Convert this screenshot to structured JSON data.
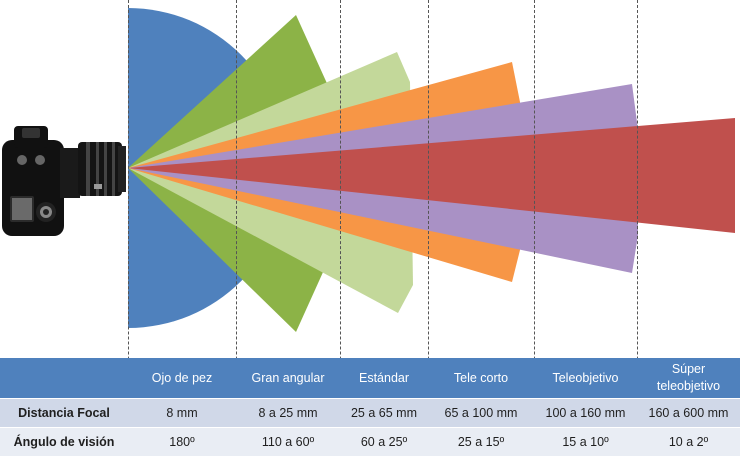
{
  "colors": {
    "fisheye": "#4f81bd",
    "wide": "#8cb347",
    "standard": "#c3d89a",
    "short_tele": "#f79646",
    "telephoto": "#a991c5",
    "super_tele": "#c0504d",
    "table_header": "#4f81bd",
    "row_focal": "#d0d8e8",
    "row_angle": "#e9edf4"
  },
  "icons": {
    "camera": "dslr-camera-icon"
  },
  "table": {
    "columns": [
      {
        "key": "fisheye",
        "label": "Ojo de pez",
        "focal": "8 mm",
        "angle": "180º"
      },
      {
        "key": "wide",
        "label": "Gran angular",
        "focal": "8 a 25 mm",
        "angle": "110 a 60º"
      },
      {
        "key": "standard",
        "label": "Estándar",
        "focal": "25 a 65  mm",
        "angle": "60 a 25º"
      },
      {
        "key": "short_tele",
        "label": "Tele corto",
        "focal": "65 a 100 mm",
        "angle": "25 a 15º"
      },
      {
        "key": "telephoto",
        "label": "Teleobjetivo",
        "focal": "100 a 160 mm",
        "angle": "15 a 10º"
      },
      {
        "key": "super_tele",
        "label_line1": "Súper",
        "label_line2": "teleobjetivo",
        "focal": "160 a 600 mm",
        "angle": "10 a 2º"
      }
    ],
    "row_labels": {
      "focal": "Distancia Focal",
      "angle": "Ángulo de visión"
    }
  }
}
